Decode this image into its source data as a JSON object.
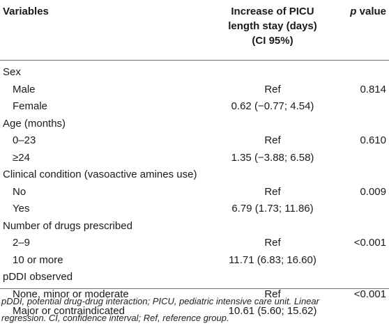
{
  "table": {
    "headers": {
      "variables": "Variables",
      "increase_line1": "Increase of PICU",
      "increase_line2": "length stay (days)",
      "increase_line3": "(CI 95%)",
      "p_italic": "p",
      "p_rest": " value"
    },
    "rows": [
      {
        "label": "Sex",
        "estimate": "",
        "p": "",
        "level": "group"
      },
      {
        "label": "Male",
        "estimate": "Ref",
        "p": "0.814",
        "level": "sub"
      },
      {
        "label": "Female",
        "estimate": "0.62 (−0.77; 4.54)",
        "p": "",
        "level": "sub"
      },
      {
        "label": "Age (months)",
        "estimate": "",
        "p": "",
        "level": "group"
      },
      {
        "label": "0–23",
        "estimate": "Ref",
        "p": "0.610",
        "level": "sub"
      },
      {
        "label": "≥24",
        "estimate": "1.35 (−3.88; 6.58)",
        "p": "",
        "level": "sub"
      },
      {
        "label": "Clinical condition (vasoactive amines use)",
        "estimate": "",
        "p": "",
        "level": "group"
      },
      {
        "label": "No",
        "estimate": "Ref",
        "p": "0.009",
        "level": "sub"
      },
      {
        "label": "Yes",
        "estimate": "6.79 (1.73; 11.86)",
        "p": "",
        "level": "sub"
      },
      {
        "label": "Number of drugs prescribed",
        "estimate": "",
        "p": "",
        "level": "group"
      },
      {
        "label": "2–9",
        "estimate": "Ref",
        "p": "<0.001",
        "level": "sub"
      },
      {
        "label": "10 or more",
        "estimate": "11.71 (6.83; 16.60)",
        "p": "",
        "level": "sub"
      },
      {
        "label": "pDDI observed",
        "estimate": "",
        "p": "",
        "level": "group"
      },
      {
        "label": "None, minor or moderate",
        "estimate": "Ref",
        "p": "<0.001",
        "level": "sub"
      },
      {
        "label": "Major or contraindicated",
        "estimate": "10.61 (5.60; 15.62)",
        "p": "",
        "level": "sub"
      }
    ],
    "footnote_line1": "pDDI, potential drug-drug interaction; PICU, pediatric intensive care unit. Linear",
    "footnote_line2": "regression. CI, confidence interval; Ref, reference group."
  }
}
